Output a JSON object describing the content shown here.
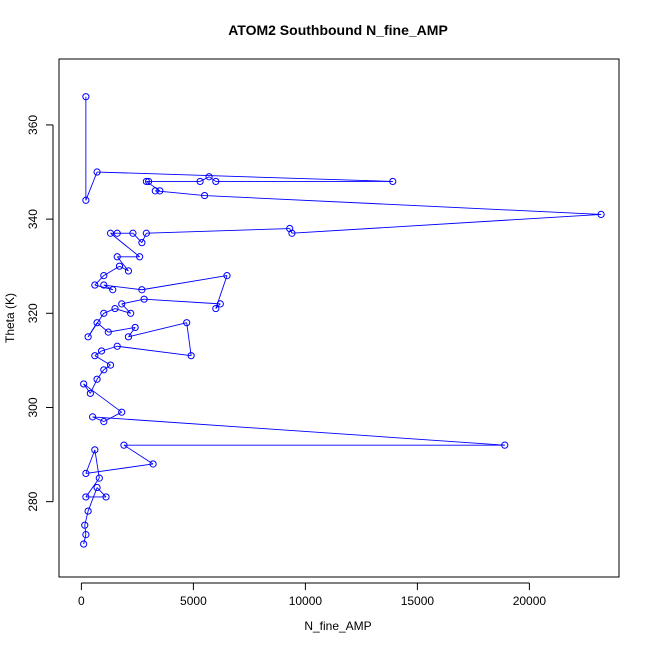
{
  "chart_data": {
    "type": "scatter",
    "title": "ATOM2 Southbound N_fine_AMP",
    "xlabel": "N_fine_AMP",
    "ylabel": "Theta (K)",
    "xlim": [
      -1000,
      24000
    ],
    "ylim": [
      264,
      374
    ],
    "xticks": [
      0,
      5000,
      10000,
      15000,
      20000
    ],
    "yticks": [
      280,
      300,
      320,
      340,
      360
    ],
    "grid": false,
    "series_color": "#0000ff",
    "series": [
      {
        "style": "points-connected",
        "points": [
          [
            100,
            271
          ],
          [
            200,
            273
          ],
          [
            150,
            275
          ],
          [
            300,
            278
          ],
          [
            700,
            283
          ],
          [
            1100,
            281
          ],
          [
            200,
            281
          ],
          [
            800,
            285
          ],
          [
            600,
            291
          ],
          [
            200,
            286
          ],
          [
            3200,
            288
          ],
          [
            1900,
            292
          ],
          [
            18900,
            292
          ],
          [
            500,
            298
          ],
          [
            1000,
            297
          ],
          [
            1800,
            299
          ],
          [
            100,
            305
          ],
          [
            400,
            303
          ],
          [
            700,
            306
          ],
          [
            1000,
            308
          ],
          [
            1300,
            309
          ],
          [
            600,
            311
          ],
          [
            900,
            312
          ],
          [
            1600,
            313
          ],
          [
            4900,
            311
          ],
          [
            4700,
            318
          ],
          [
            2100,
            315
          ],
          [
            2400,
            317
          ],
          [
            1200,
            316
          ],
          [
            700,
            318
          ],
          [
            300,
            315
          ],
          [
            1000,
            320
          ],
          [
            1500,
            321
          ],
          [
            2200,
            320
          ],
          [
            1800,
            322
          ],
          [
            2800,
            323
          ],
          [
            6200,
            322
          ],
          [
            6000,
            321
          ],
          [
            6500,
            328
          ],
          [
            2700,
            325
          ],
          [
            1000,
            326
          ],
          [
            1400,
            325
          ],
          [
            600,
            326
          ],
          [
            1000,
            328
          ],
          [
            1700,
            330
          ],
          [
            2100,
            329
          ],
          [
            1600,
            332
          ],
          [
            2600,
            332
          ],
          [
            1300,
            337
          ],
          [
            1600,
            337
          ],
          [
            2300,
            337
          ],
          [
            2700,
            335
          ],
          [
            2900,
            337
          ],
          [
            9300,
            338
          ],
          [
            9400,
            337
          ],
          [
            23200,
            341
          ],
          [
            5500,
            345
          ],
          [
            3300,
            346
          ],
          [
            3500,
            346
          ],
          [
            2900,
            348
          ],
          [
            3000,
            348
          ],
          [
            5300,
            348
          ],
          [
            5700,
            349
          ],
          [
            6000,
            348
          ],
          [
            13900,
            348
          ],
          [
            700,
            350
          ],
          [
            200,
            344
          ],
          [
            200,
            366
          ]
        ]
      }
    ]
  }
}
